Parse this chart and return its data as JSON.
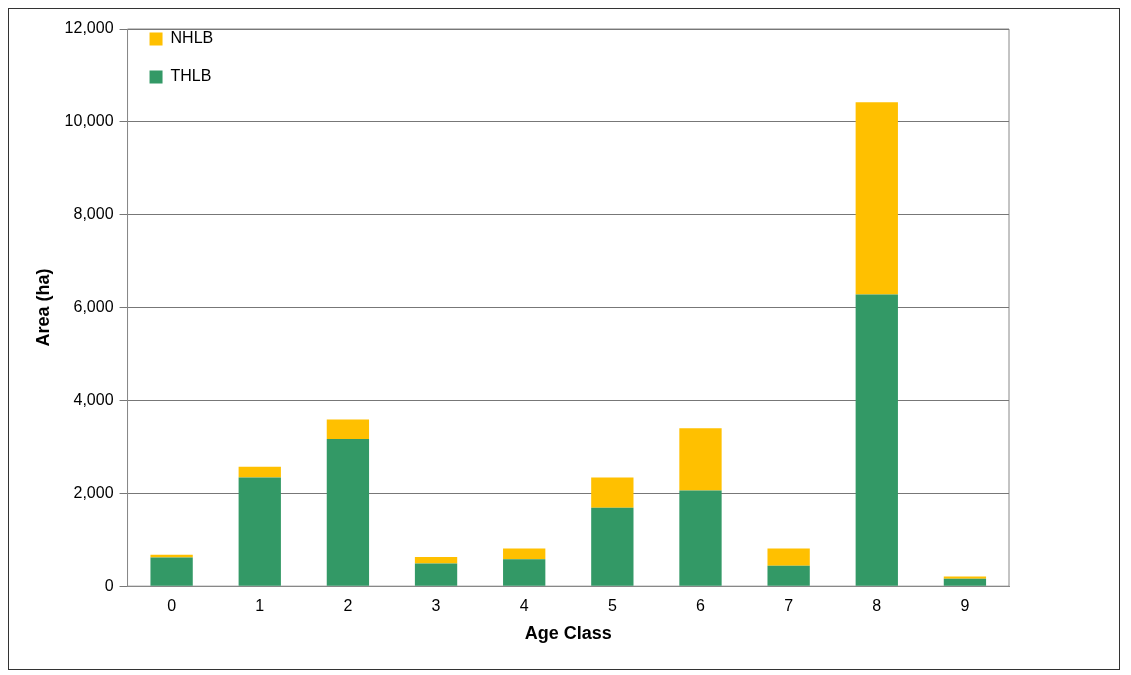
{
  "chart_data": {
    "type": "bar",
    "stacked": true,
    "xlabel": "Age Class",
    "ylabel": "Area (ha)",
    "categories": [
      "0",
      "1",
      "2",
      "3",
      "4",
      "5",
      "6",
      "7",
      "8",
      "9"
    ],
    "series": [
      {
        "name": "THLB",
        "color": "#339966",
        "values": [
          620,
          2340,
          3170,
          490,
          580,
          1690,
          2060,
          440,
          6280,
          160
        ]
      },
      {
        "name": "NHLB",
        "color": "#ffc000",
        "values": [
          60,
          230,
          420,
          140,
          230,
          650,
          1340,
          370,
          4140,
          50
        ]
      }
    ],
    "ylim": [
      0,
      12000
    ],
    "yticks": [
      {
        "value": 0,
        "label": "0"
      },
      {
        "value": 2000,
        "label": "2,000"
      },
      {
        "value": 4000,
        "label": "4,000"
      },
      {
        "value": 6000,
        "label": "6,000"
      },
      {
        "value": 8000,
        "label": "8,000"
      },
      {
        "value": 10000,
        "label": "10,000"
      },
      {
        "value": 12000,
        "label": "12,000"
      }
    ],
    "grid": "y",
    "legend": "top left"
  }
}
